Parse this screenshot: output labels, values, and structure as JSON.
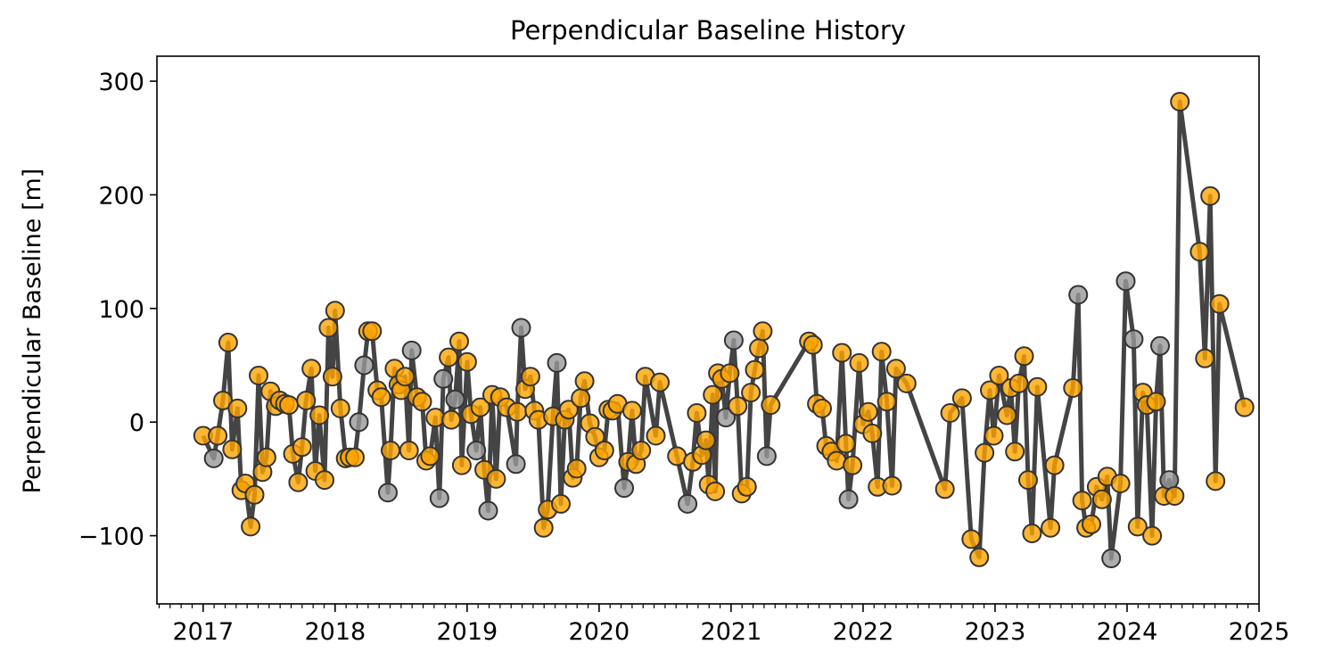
{
  "chart_data": {
    "type": "line",
    "title": "Perpendicular Baseline History",
    "xlabel": "",
    "ylabel": "Perpendicular Baseline [m]",
    "xlim": [
      2016.65,
      2025.0
    ],
    "ylim": [
      -160,
      322
    ],
    "x_ticks": [
      2017,
      2018,
      2019,
      2020,
      2021,
      2022,
      2023,
      2024,
      2025
    ],
    "y_ticks": [
      -100,
      0,
      100,
      200,
      300
    ],
    "y_tick_labels": [
      "−100",
      "0",
      "100",
      "200",
      "300"
    ],
    "grid": false,
    "colors": {
      "used": "#FFA500",
      "unused": "#999999",
      "line": "#444444",
      "edge": "#333333"
    },
    "series": [
      {
        "points": [
          [
            2017.0,
            -12
          ],
          [
            2017.08,
            -32
          ],
          [
            2017.11,
            -12
          ],
          [
            2017.15,
            19
          ],
          [
            2017.19,
            70
          ],
          [
            2017.22,
            -24
          ],
          [
            2017.26,
            12
          ],
          [
            2017.29,
            -60
          ],
          [
            2017.32,
            -54
          ],
          [
            2017.36,
            -92
          ],
          [
            2017.39,
            -64
          ],
          [
            2017.42,
            41
          ],
          [
            2017.45,
            -44
          ],
          [
            2017.48,
            -31
          ],
          [
            2017.51,
            27
          ],
          [
            2017.55,
            14
          ],
          [
            2017.58,
            19
          ],
          [
            2017.62,
            16
          ],
          [
            2017.65,
            15
          ],
          [
            2017.68,
            -28
          ],
          [
            2017.72,
            -53
          ],
          [
            2017.75,
            -22
          ],
          [
            2017.78,
            19
          ],
          [
            2017.82,
            47
          ],
          [
            2017.85,
            -43
          ],
          [
            2017.88,
            6
          ],
          [
            2017.92,
            -51
          ],
          [
            2017.95,
            83
          ],
          [
            2017.98,
            40
          ],
          [
            2018.0,
            98
          ],
          [
            2018.04,
            12
          ],
          [
            2018.08,
            -32
          ],
          [
            2018.11,
            -31
          ],
          [
            2018.15,
            -31
          ],
          [
            2018.18,
            0
          ],
          [
            2018.22,
            50
          ],
          [
            2018.25,
            80
          ],
          [
            2018.28,
            80
          ],
          [
            2018.32,
            28
          ],
          [
            2018.35,
            22
          ],
          [
            2018.4,
            -62
          ],
          [
            2018.42,
            -25
          ],
          [
            2018.45,
            47
          ],
          [
            2018.48,
            33
          ],
          [
            2018.5,
            28
          ],
          [
            2018.53,
            40
          ],
          [
            2018.56,
            -25
          ],
          [
            2018.58,
            63
          ],
          [
            2018.62,
            22
          ],
          [
            2018.66,
            18
          ],
          [
            2018.69,
            -34
          ],
          [
            2018.72,
            -30
          ],
          [
            2018.76,
            4
          ],
          [
            2018.79,
            -67
          ],
          [
            2018.82,
            38
          ],
          [
            2018.86,
            57
          ],
          [
            2018.88,
            2
          ],
          [
            2018.91,
            20
          ],
          [
            2018.94,
            71
          ],
          [
            2018.96,
            -38
          ],
          [
            2019.0,
            53
          ],
          [
            2019.03,
            7
          ],
          [
            2019.07,
            -25
          ],
          [
            2019.1,
            13
          ],
          [
            2019.13,
            -42
          ],
          [
            2019.16,
            -78
          ],
          [
            2019.19,
            24
          ],
          [
            2019.22,
            -50
          ],
          [
            2019.25,
            22
          ],
          [
            2019.3,
            13
          ],
          [
            2019.37,
            -37
          ],
          [
            2019.38,
            9
          ],
          [
            2019.41,
            83
          ],
          [
            2019.44,
            29
          ],
          [
            2019.48,
            40
          ],
          [
            2019.51,
            10
          ],
          [
            2019.54,
            2
          ],
          [
            2019.58,
            -93
          ],
          [
            2019.61,
            -77
          ],
          [
            2019.65,
            5
          ],
          [
            2019.68,
            52
          ],
          [
            2019.71,
            -72
          ],
          [
            2019.74,
            2
          ],
          [
            2019.77,
            11
          ],
          [
            2019.8,
            -49
          ],
          [
            2019.83,
            -41
          ],
          [
            2019.86,
            21
          ],
          [
            2019.89,
            36
          ],
          [
            2019.93,
            -1
          ],
          [
            2019.97,
            -13
          ],
          [
            2020.0,
            -31
          ],
          [
            2020.04,
            -25
          ],
          [
            2020.07,
            11
          ],
          [
            2020.1,
            10
          ],
          [
            2020.14,
            16
          ],
          [
            2020.19,
            -58
          ],
          [
            2020.22,
            -35
          ],
          [
            2020.25,
            10
          ],
          [
            2020.28,
            -37
          ],
          [
            2020.32,
            -25
          ],
          [
            2020.35,
            40
          ],
          [
            2020.43,
            -12
          ],
          [
            2020.46,
            35
          ],
          [
            2020.59,
            -30
          ],
          [
            2020.67,
            -72
          ],
          [
            2020.71,
            -35
          ],
          [
            2020.74,
            8
          ],
          [
            2020.78,
            -29
          ],
          [
            2020.81,
            -16
          ],
          [
            2020.83,
            -55
          ],
          [
            2020.86,
            24
          ],
          [
            2020.88,
            -61
          ],
          [
            2020.9,
            43
          ],
          [
            2020.93,
            38
          ],
          [
            2020.96,
            4
          ],
          [
            2020.99,
            43
          ],
          [
            2021.02,
            72
          ],
          [
            2021.05,
            14
          ],
          [
            2021.08,
            -63
          ],
          [
            2021.12,
            -57
          ],
          [
            2021.15,
            26
          ],
          [
            2021.18,
            46
          ],
          [
            2021.21,
            65
          ],
          [
            2021.24,
            80
          ],
          [
            2021.27,
            -30
          ],
          [
            2021.3,
            15
          ],
          [
            2021.59,
            71
          ],
          [
            2021.62,
            68
          ],
          [
            2021.65,
            16
          ],
          [
            2021.69,
            12
          ],
          [
            2021.72,
            -21
          ],
          [
            2021.76,
            -26
          ],
          [
            2021.8,
            -34
          ],
          [
            2021.84,
            61
          ],
          [
            2021.87,
            -19
          ],
          [
            2021.89,
            -68
          ],
          [
            2021.92,
            -38
          ],
          [
            2021.97,
            52
          ],
          [
            2022.0,
            -2
          ],
          [
            2022.04,
            9
          ],
          [
            2022.07,
            -10
          ],
          [
            2022.11,
            -57
          ],
          [
            2022.14,
            62
          ],
          [
            2022.18,
            18
          ],
          [
            2022.22,
            -56
          ],
          [
            2022.25,
            47
          ],
          [
            2022.33,
            34
          ],
          [
            2022.62,
            -59
          ],
          [
            2022.66,
            8
          ],
          [
            2022.75,
            21
          ],
          [
            2022.82,
            -103
          ],
          [
            2022.88,
            -119
          ],
          [
            2022.92,
            -27
          ],
          [
            2022.96,
            28
          ],
          [
            2022.99,
            -12
          ],
          [
            2023.03,
            41
          ],
          [
            2023.09,
            6
          ],
          [
            2023.12,
            30
          ],
          [
            2023.15,
            -26
          ],
          [
            2023.18,
            34
          ],
          [
            2023.22,
            58
          ],
          [
            2023.25,
            -51
          ],
          [
            2023.28,
            -98
          ],
          [
            2023.32,
            31
          ],
          [
            2023.42,
            -93
          ],
          [
            2023.45,
            -38
          ],
          [
            2023.59,
            30
          ],
          [
            2023.63,
            112
          ],
          [
            2023.66,
            -69
          ],
          [
            2023.69,
            -93
          ],
          [
            2023.73,
            -90
          ],
          [
            2023.77,
            -57
          ],
          [
            2023.81,
            -68
          ],
          [
            2023.85,
            -48
          ],
          [
            2023.88,
            -120
          ],
          [
            2023.95,
            -54
          ],
          [
            2023.99,
            124
          ],
          [
            2024.05,
            73
          ],
          [
            2024.08,
            -92
          ],
          [
            2024.12,
            26
          ],
          [
            2024.15,
            15
          ],
          [
            2024.19,
            -100
          ],
          [
            2024.22,
            18
          ],
          [
            2024.25,
            67
          ],
          [
            2024.28,
            -65
          ],
          [
            2024.32,
            -51
          ],
          [
            2024.36,
            -65
          ],
          [
            2024.4,
            282
          ],
          [
            2024.55,
            150
          ],
          [
            2024.59,
            56
          ],
          [
            2024.63,
            199
          ],
          [
            2024.67,
            -52
          ],
          [
            2024.7,
            104
          ],
          [
            2024.89,
            13
          ]
        ],
        "unused_x": [
          2017.08,
          2018.18,
          2018.22,
          2018.4,
          2018.58,
          2018.79,
          2018.82,
          2018.91,
          2019.07,
          2019.16,
          2019.37,
          2019.41,
          2019.68,
          2020.19,
          2020.67,
          2020.96,
          2021.02,
          2021.27,
          2021.89,
          2023.63,
          2023.88,
          2023.99,
          2024.05,
          2024.25,
          2024.32
        ]
      }
    ]
  }
}
